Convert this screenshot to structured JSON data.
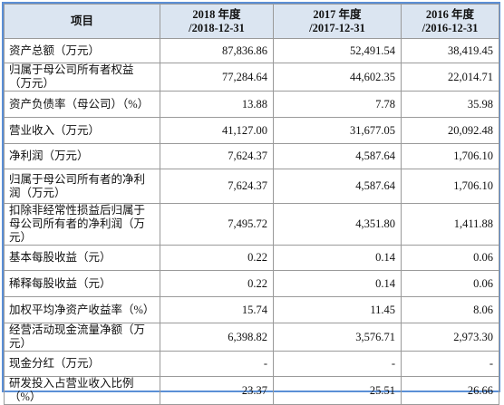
{
  "table": {
    "header": [
      "项目",
      [
        "2018 年度",
        "/2018-12-31"
      ],
      [
        "2017 年度",
        "/2017-12-31"
      ],
      [
        "2016 年度",
        "/2016-12-31"
      ]
    ],
    "rows": [
      [
        "资产总额（万元）",
        "87,836.86",
        "52,491.54",
        "38,419.45"
      ],
      [
        "归属于母公司所有者权益（万元）",
        "77,284.64",
        "44,602.35",
        "22,014.71"
      ],
      [
        "资产负债率（母公司）（%）",
        "13.88",
        "7.78",
        "35.98"
      ],
      [
        "营业收入（万元）",
        "41,127.00",
        "31,677.05",
        "20,092.48"
      ],
      [
        "净利润（万元）",
        "7,624.37",
        "4,587.64",
        "1,706.10"
      ],
      [
        "归属于母公司所有者的净利润（万元）",
        "7,624.37",
        "4,587.64",
        "1,706.10"
      ],
      [
        "扣除非经常性损益后归属于母公司所有者的净利润（万元）",
        "7,495.72",
        "4,351.80",
        "1,411.88"
      ],
      [
        "基本每股收益（元）",
        "0.22",
        "0.14",
        "0.06"
      ],
      [
        "稀释每股收益（元）",
        "0.22",
        "0.14",
        "0.06"
      ],
      [
        "加权平均净资产收益率（%）",
        "15.74",
        "11.45",
        "8.06"
      ],
      [
        "经营活动现金流量净额（万元）",
        "6,398.82",
        "3,576.71",
        "2,973.30"
      ],
      [
        "现金分红（万元）",
        "-",
        "-",
        "-"
      ],
      [
        "研发投入占营业收入比例（%）",
        "23.37",
        "25.51",
        "26.66"
      ]
    ]
  }
}
